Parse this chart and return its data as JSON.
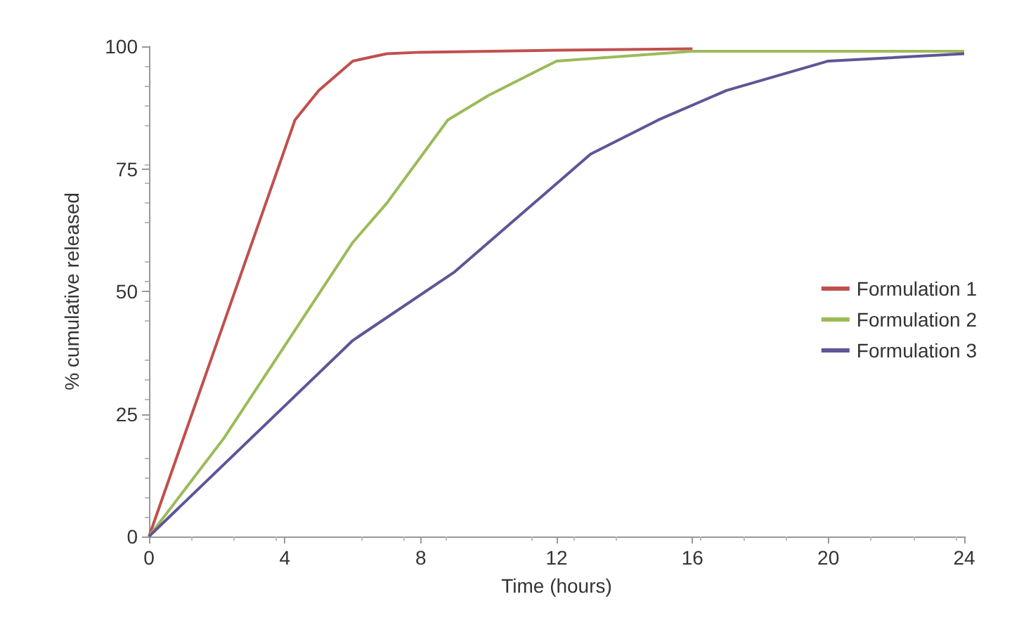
{
  "chart_data": {
    "type": "line",
    "xlabel": "Time (hours)",
    "ylabel": "% cumulative released",
    "xlim": [
      0,
      24
    ],
    "xticks": [
      0,
      4,
      8,
      12,
      16,
      20,
      24
    ],
    "ylim": [
      0,
      100
    ],
    "yticks": [
      0,
      25,
      50,
      75,
      100
    ],
    "grid": false,
    "legend": "right",
    "marker": "none",
    "series": [
      {
        "name": "Formulation 1",
        "color": "#c0504d",
        "x": [
          0,
          4.3,
          5,
          6,
          7,
          8,
          12,
          16
        ],
        "values": [
          0,
          85,
          91,
          97,
          98.5,
          98.8,
          99.2,
          99.5
        ]
      },
      {
        "name": "Formulation 2",
        "color": "#9bbb59",
        "x": [
          0,
          2.2,
          6,
          7,
          8.8,
          10,
          12,
          16,
          24
        ],
        "values": [
          0,
          20,
          60,
          68,
          85,
          90,
          97,
          99,
          99
        ]
      },
      {
        "name": "Formulation 3",
        "color": "#5f5597",
        "x": [
          0,
          6,
          9,
          13,
          15,
          17,
          20,
          24
        ],
        "values": [
          0,
          40,
          54,
          78,
          85,
          91,
          97,
          98.5
        ]
      }
    ]
  }
}
